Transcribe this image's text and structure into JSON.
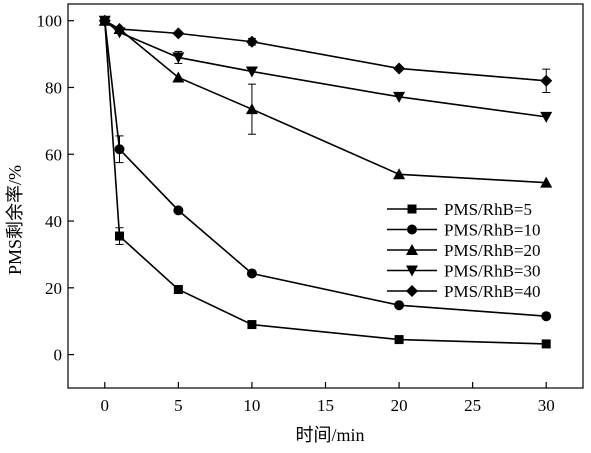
{
  "chart_data": {
    "type": "line",
    "title": "",
    "xlabel": "时间/min",
    "ylabel": "PMS剩余率/%",
    "xlim": [
      -2.5,
      32.5
    ],
    "ylim": [
      -10,
      105
    ],
    "xticks": [
      0,
      5,
      10,
      15,
      20,
      25,
      30
    ],
    "yticks": [
      0,
      20,
      40,
      60,
      80,
      100
    ],
    "grid": false,
    "legend_position": "center-right",
    "x": [
      0,
      1,
      5,
      10,
      20,
      30
    ],
    "series": [
      {
        "name": "PMS/RhB=5",
        "marker": "square",
        "values": [
          100,
          35.5,
          19.5,
          9,
          4.5,
          3.2
        ],
        "errors": [
          0,
          2.5,
          0,
          0,
          0,
          0
        ]
      },
      {
        "name": "PMS/RhB=10",
        "marker": "circle",
        "values": [
          100,
          61.5,
          43.2,
          24.3,
          14.8,
          11.5
        ],
        "errors": [
          0,
          4,
          0,
          0,
          0,
          0
        ]
      },
      {
        "name": "PMS/RhB=20",
        "marker": "triangle-up",
        "values": [
          100,
          97.5,
          83,
          73.5,
          54,
          51.5
        ],
        "errors": [
          0,
          0,
          0,
          7.5,
          0,
          0
        ]
      },
      {
        "name": "PMS/RhB=30",
        "marker": "triangle-down",
        "values": [
          100,
          96.5,
          89,
          84.8,
          77.2,
          71.2
        ],
        "errors": [
          0,
          0,
          1.8,
          0,
          0,
          0
        ]
      },
      {
        "name": "PMS/RhB=40",
        "marker": "diamond",
        "values": [
          100,
          97.5,
          96.2,
          93.7,
          85.7,
          82
        ],
        "errors": [
          0,
          0,
          0,
          1,
          0,
          3.5
        ]
      }
    ]
  }
}
